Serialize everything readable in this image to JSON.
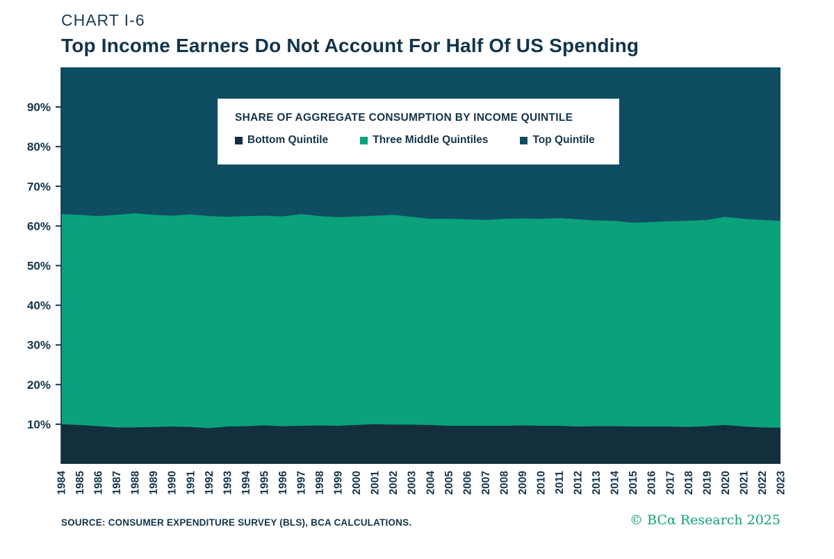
{
  "header": {
    "chart_label": "CHART I-6",
    "title": "Top Income Earners Do Not Account For Half Of US Spending"
  },
  "legend": {
    "title": "SHARE OF AGGREGATE CONSUMPTION BY INCOME QUINTILE"
  },
  "footer": {
    "source": "SOURCE: CONSUMER EXPENDITURE SURVEY (BLS), BCA CALCULATIONS.",
    "copyright": "© BCα Research 2025"
  },
  "colors": {
    "text_navy": "#14344a",
    "accent_green": "#0aa17b",
    "background": "#ffffff"
  },
  "chart_data": {
    "type": "area",
    "stacked": true,
    "title": "Top Income Earners Do Not Account For Half Of US Spending",
    "unit": "%",
    "ylim": [
      0,
      100
    ],
    "yticks": [
      10,
      20,
      30,
      40,
      50,
      60,
      70,
      80,
      90
    ],
    "grid": false,
    "legend_position": "top-inside",
    "x": [
      1984,
      1985,
      1986,
      1987,
      1988,
      1989,
      1990,
      1991,
      1992,
      1993,
      1994,
      1995,
      1996,
      1997,
      1998,
      1999,
      2000,
      2001,
      2002,
      2003,
      2004,
      2005,
      2006,
      2007,
      2008,
      2009,
      2010,
      2011,
      2012,
      2013,
      2014,
      2015,
      2016,
      2017,
      2018,
      2019,
      2020,
      2021,
      2022,
      2023
    ],
    "series": [
      {
        "name": "Bottom Quintile",
        "color": "#132e3d",
        "values": [
          10.0,
          9.8,
          9.5,
          9.2,
          9.2,
          9.3,
          9.4,
          9.3,
          9.0,
          9.4,
          9.5,
          9.7,
          9.5,
          9.6,
          9.7,
          9.6,
          9.8,
          10.0,
          9.9,
          9.9,
          9.8,
          9.6,
          9.6,
          9.6,
          9.6,
          9.7,
          9.6,
          9.6,
          9.4,
          9.5,
          9.5,
          9.4,
          9.4,
          9.4,
          9.3,
          9.5,
          9.8,
          9.4,
          9.2,
          9.1
        ]
      },
      {
        "name": "Three Middle Quintiles",
        "color": "#0aa17b",
        "values": [
          53.0,
          53.0,
          53.0,
          53.6,
          54.0,
          53.5,
          53.2,
          53.6,
          53.5,
          52.9,
          53.0,
          52.9,
          52.9,
          53.4,
          52.8,
          52.6,
          52.6,
          52.6,
          52.9,
          52.4,
          52.0,
          52.2,
          52.1,
          51.9,
          52.2,
          52.2,
          52.2,
          52.4,
          52.3,
          51.9,
          51.8,
          51.4,
          51.6,
          51.8,
          52.0,
          52.0,
          52.5,
          52.4,
          52.3,
          52.2
        ]
      },
      {
        "name": "Top Quintile",
        "color": "#0f4d63",
        "values": [
          37.0,
          37.2,
          37.5,
          37.2,
          36.8,
          37.2,
          37.4,
          37.1,
          37.5,
          37.7,
          37.5,
          37.4,
          37.6,
          37.0,
          37.5,
          37.8,
          37.6,
          37.4,
          37.2,
          37.7,
          38.2,
          38.2,
          38.3,
          38.5,
          38.2,
          38.1,
          38.2,
          38.0,
          38.3,
          38.6,
          38.7,
          39.2,
          39.0,
          38.8,
          38.7,
          38.5,
          37.7,
          38.2,
          38.5,
          38.7
        ]
      }
    ]
  }
}
